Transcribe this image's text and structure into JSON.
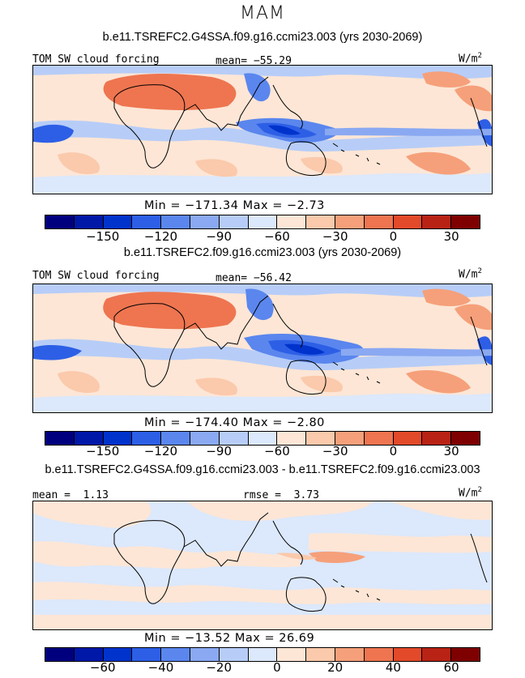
{
  "season": "MAM",
  "colors": [
    "#00007f",
    "#0018a8",
    "#0033cc",
    "#2d5fe6",
    "#5a86ee",
    "#8aa9f2",
    "#b7cdf7",
    "#dce8fb",
    "#fde6d6",
    "#fbc9ab",
    "#f5a07a",
    "#ee7550",
    "#e24a2a",
    "#b82315",
    "#7f0000"
  ],
  "panels": [
    {
      "title": "b.e11.TSREFC2.G4SSA.f09.g16.ccmi23.003 (yrs 2030-2069)",
      "left_label": "TOM SW cloud forcing",
      "mean_label": "mean=",
      "mean_value": "−55.29",
      "units_base": "W/m",
      "units_exp": "2",
      "min_label": "Min =",
      "min_value": "−171.34",
      "max_label": "Max =",
      "max_value": "−2.73",
      "ticks": [
        "−150",
        "−120",
        "−90",
        "−60",
        "−30",
        "0",
        "30"
      ]
    },
    {
      "title": "b.e11.TSREFC2.f09.g16.ccmi23.003 (yrs 2030-2069)",
      "left_label": "TOM SW cloud forcing",
      "mean_label": "mean=",
      "mean_value": "−56.42",
      "units_base": "W/m",
      "units_exp": "2",
      "min_label": "Min =",
      "min_value": "−174.40",
      "max_label": "Max =",
      "max_value": "−2.80",
      "ticks": [
        "−150",
        "−120",
        "−90",
        "−60",
        "−30",
        "0",
        "30"
      ]
    },
    {
      "title": "b.e11.TSREFC2.G4SSA.f09.g16.ccmi23.003 - b.e11.TSREFC2.f09.g16.ccmi23.003",
      "mean_label": "mean =",
      "mean_value": "1.13",
      "rmse_label": "rmse =",
      "rmse_value": "3.73",
      "units_base": "W/m",
      "units_exp": "2",
      "min_label": "Min =",
      "min_value": "−13.52",
      "max_label": "Max =",
      "max_value": "26.69",
      "ticks": [
        "−60",
        "−40",
        "−20",
        "0",
        "20",
        "40",
        "60"
      ]
    }
  ],
  "chart_data": [
    {
      "type": "heatmap",
      "title": "b.e11.TSREFC2.G4SSA.f09.g16.ccmi23.003 (yrs 2030-2069)",
      "variable": "TOM SW cloud forcing",
      "units": "W/m2",
      "mean": -55.29,
      "min": -171.34,
      "max": -2.73,
      "contour_levels": [
        -165,
        -150,
        -135,
        -120,
        -105,
        -90,
        -75,
        -60,
        -45,
        -30,
        -15,
        0,
        15,
        30
      ],
      "colorbar_ticks": [
        -150,
        -120,
        -90,
        -60,
        -30,
        0,
        30
      ]
    },
    {
      "type": "heatmap",
      "title": "b.e11.TSREFC2.f09.g16.ccmi23.003 (yrs 2030-2069)",
      "variable": "TOM SW cloud forcing",
      "units": "W/m2",
      "mean": -56.42,
      "min": -174.4,
      "max": -2.8,
      "contour_levels": [
        -165,
        -150,
        -135,
        -120,
        -105,
        -90,
        -75,
        -60,
        -45,
        -30,
        -15,
        0,
        15,
        30
      ],
      "colorbar_ticks": [
        -150,
        -120,
        -90,
        -60,
        -30,
        0,
        30
      ]
    },
    {
      "type": "heatmap",
      "title": "b.e11.TSREFC2.G4SSA.f09.g16.ccmi23.003 - b.e11.TSREFC2.f09.g16.ccmi23.003",
      "units": "W/m2",
      "mean": 1.13,
      "rmse": 3.73,
      "min": -13.52,
      "max": 26.69,
      "contour_levels": [
        -70,
        -60,
        -50,
        -40,
        -30,
        -20,
        -10,
        0,
        10,
        20,
        30,
        40,
        50,
        60
      ],
      "colorbar_ticks": [
        -60,
        -40,
        -20,
        0,
        20,
        40,
        60
      ]
    }
  ]
}
